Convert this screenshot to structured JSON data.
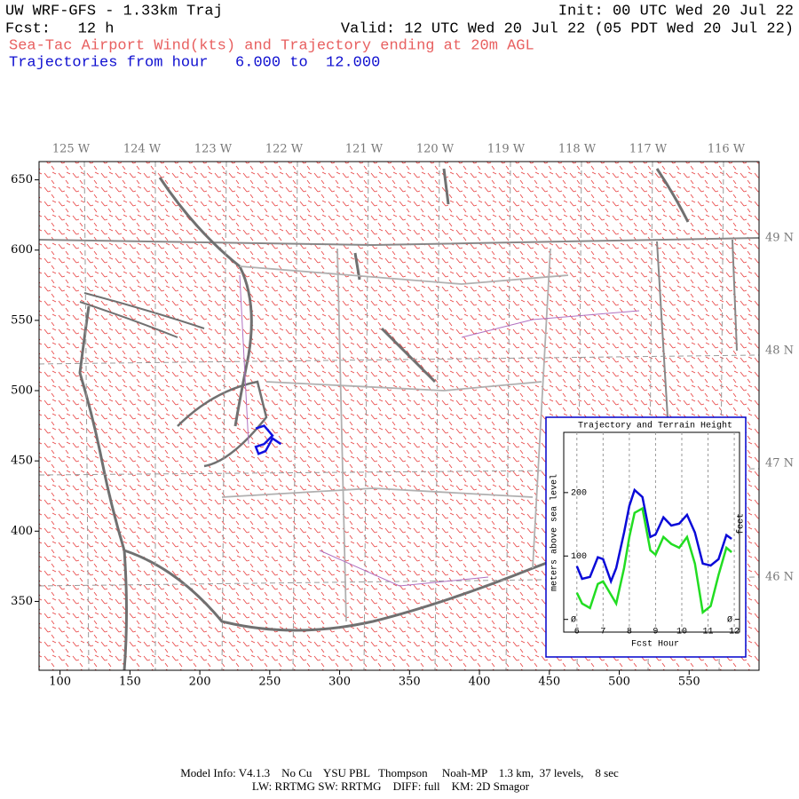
{
  "header": {
    "title": "UW WRF-GFS - 1.33km Traj",
    "init": "Init: 00 UTC Wed 20 Jul 22",
    "fcst": "Fcst:   12 h",
    "valid": "Valid: 12 UTC Wed 20 Jul 22 (05 PDT Wed 20 Jul 22)",
    "subtitle": "Sea-Tac Airport Wind(kts) and Trajectory ending at 20m AGL",
    "traj_hours": "Trajectories from hour   6.000 to  12.000"
  },
  "footer": [
    "Model Info: V4.1.3    No Cu    YSU PBL   Thompson     Noah-MP    1.3 km,  37 levels,    8 sec",
    "LW: RRTMG SW: RRTMG    DIFF: full    KM: 2D Smagor"
  ],
  "map": {
    "xlim": [
      85,
      600
    ],
    "ylim": [
      301,
      663
    ],
    "xticks": [
      100,
      150,
      200,
      250,
      300,
      350,
      400,
      450,
      500,
      550
    ],
    "yticks": [
      350,
      400,
      450,
      500,
      550,
      600,
      650
    ],
    "lon_labels": [
      "125 W",
      "124 W",
      "123 W",
      "122 W",
      "121 W",
      "120 W",
      "119 W",
      "118 W",
      "117 W",
      "116 W"
    ],
    "lat_labels": [
      "49 N",
      "48 N",
      "47 N",
      "46 N"
    ],
    "trajectory": {
      "color": "#1010e0",
      "x": [
        258,
        252,
        247,
        242,
        240,
        246,
        252,
        246,
        240
      ],
      "y": [
        462,
        466,
        457,
        455,
        460,
        462,
        468,
        475,
        473
      ]
    }
  },
  "chart_data": {
    "type": "line",
    "title": "Trajectory and Terrain Height",
    "x_label": "Fcst Hour",
    "y_label": "meters above sea level",
    "y2_label": "feet",
    "x": [
      6,
      6.2,
      6.5,
      6.8,
      7.0,
      7.3,
      7.5,
      7.8,
      8.0,
      8.2,
      8.5,
      8.8,
      9.0,
      9.3,
      9.6,
      9.9,
      10.2,
      10.5,
      10.8,
      11.1,
      11.4,
      11.7,
      11.9
    ],
    "xlim": [
      5.5,
      12.2
    ],
    "ylim": [
      -20,
      295
    ],
    "y2lim": [
      -66,
      968
    ],
    "xticks": [
      6,
      7,
      8,
      9,
      10,
      11,
      12
    ],
    "yticks": [
      {
        "value": 0,
        "label": "Ø"
      },
      100,
      200
    ],
    "y2ticks": [
      {
        "value": 0,
        "label": "Ø"
      }
    ],
    "grid": true,
    "series": [
      {
        "name": "Trajectory",
        "color": "#0a0ad8",
        "values": [
          84,
          64,
          67,
          98,
          95,
          60,
          81,
          137,
          179,
          204,
          193,
          130,
          134,
          161,
          148,
          151,
          165,
          137,
          88,
          85,
          95,
          133,
          127
        ]
      },
      {
        "name": "Terrain",
        "color": "#22dd22",
        "values": [
          42,
          25,
          18,
          56,
          60,
          39,
          25,
          81,
          130,
          168,
          175,
          109,
          102,
          130,
          119,
          113,
          130,
          88,
          11,
          21,
          70,
          113,
          106
        ]
      }
    ]
  }
}
